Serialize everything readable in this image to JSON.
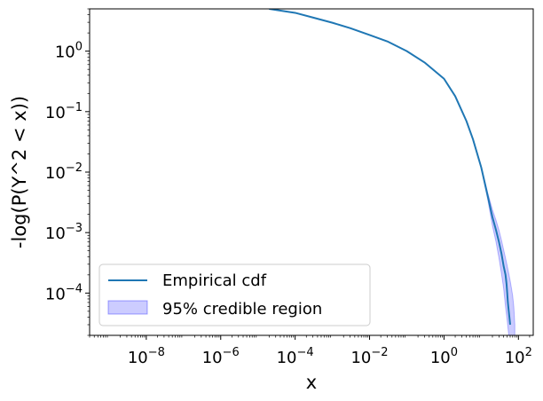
{
  "chart_data": {
    "type": "line",
    "xlabel": "x",
    "ylabel": "-log(P(Y^2 < x))",
    "xscale": "log",
    "yscale": "log",
    "xlim": [
      3e-10,
      250
    ],
    "ylim": [
      2e-05,
      5
    ],
    "x_ticks": [
      {
        "base": "10",
        "exp": "−8",
        "value": 1e-08
      },
      {
        "base": "10",
        "exp": "−6",
        "value": 1e-06
      },
      {
        "base": "10",
        "exp": "−4",
        "value": 0.0001
      },
      {
        "base": "10",
        "exp": "−2",
        "value": 0.01
      },
      {
        "base": "10",
        "exp": "0",
        "value": 1
      },
      {
        "base": "10",
        "exp": "2",
        "value": 100
      }
    ],
    "y_ticks": [
      {
        "base": "10",
        "exp": "−4",
        "value": 0.0001
      },
      {
        "base": "10",
        "exp": "−3",
        "value": 0.001
      },
      {
        "base": "10",
        "exp": "−2",
        "value": 0.01
      },
      {
        "base": "10",
        "exp": "−1",
        "value": 0.1
      },
      {
        "base": "10",
        "exp": "0",
        "value": 1
      }
    ],
    "grid": false,
    "legend_position": "lower-left",
    "series": [
      {
        "name": "Empirical cdf",
        "kind": "line",
        "color": "#1f77b4",
        "x": [
          2e-05,
          0.0001,
          0.0003,
          0.001,
          0.003,
          0.01,
          0.03,
          0.1,
          0.3,
          1,
          2,
          4,
          6,
          10,
          15,
          20,
          25,
          30,
          35,
          40,
          45,
          48,
          50,
          52,
          55,
          60
        ],
        "y": [
          5.0,
          4.3,
          3.6,
          2.95,
          2.4,
          1.85,
          1.45,
          1.0,
          0.65,
          0.35,
          0.18,
          0.07,
          0.035,
          0.012,
          0.004,
          0.0018,
          0.0011,
          0.0007,
          0.00045,
          0.00028,
          0.0002,
          0.00014,
          0.0001,
          7e-05,
          5e-05,
          3e-05
        ]
      },
      {
        "name": "95% credible region",
        "kind": "band",
        "color": "#0000ff",
        "fill_opacity": 0.2,
        "x": [
          6,
          10,
          15,
          20,
          25,
          30,
          35,
          40,
          45,
          50,
          55,
          60,
          65,
          70,
          75,
          80
        ],
        "lower": [
          0.034,
          0.0115,
          0.0035,
          0.0013,
          0.0007,
          0.00038,
          0.00021,
          0.00012,
          6e-05,
          3.5e-05,
          2e-05,
          1e-05,
          1e-05,
          1e-05,
          1e-05,
          1e-05
        ],
        "upper": [
          0.036,
          0.0125,
          0.0045,
          0.0024,
          0.0016,
          0.0011,
          0.00075,
          0.00052,
          0.00038,
          0.00028,
          0.00021,
          0.00016,
          0.00012,
          9e-05,
          6e-05,
          3e-05
        ]
      }
    ]
  }
}
